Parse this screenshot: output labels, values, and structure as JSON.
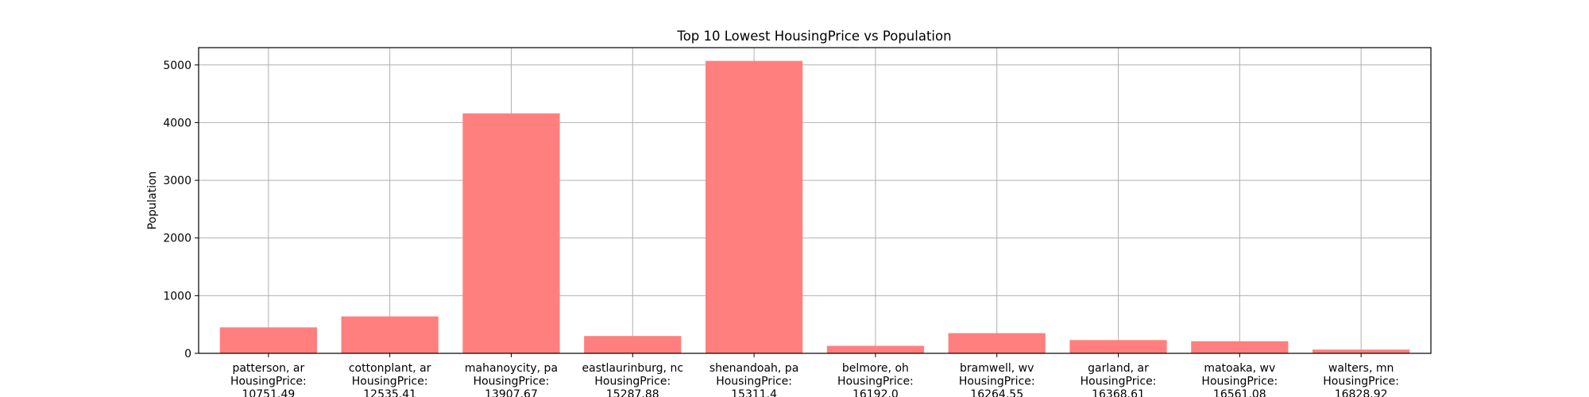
{
  "chart_data": {
    "type": "bar",
    "title": "Top 10 Lowest HousingPrice vs Population",
    "xlabel": "",
    "ylabel": "Population",
    "ylim": [
      0,
      5300
    ],
    "yticks": [
      0,
      1000,
      2000,
      3000,
      4000,
      5000
    ],
    "grid": true,
    "bar_color": "#ff7f7f",
    "categories": [
      [
        "patterson, ar",
        "HousingPrice:",
        "10751.49"
      ],
      [
        "cottonplant, ar",
        "HousingPrice:",
        "12535.41"
      ],
      [
        "mahanoycity, pa",
        "HousingPrice:",
        "13907.67"
      ],
      [
        "eastlaurinburg, nc",
        "HousingPrice:",
        "15287.88"
      ],
      [
        "shenandoah, pa",
        "HousingPrice:",
        "15311.4"
      ],
      [
        "belmore, oh",
        "HousingPrice:",
        "16192.0"
      ],
      [
        "bramwell, wv",
        "HousingPrice:",
        "16264.55"
      ],
      [
        "garland, ar",
        "HousingPrice:",
        "16368.61"
      ],
      [
        "matoaka, wv",
        "HousingPrice:",
        "16561.08"
      ],
      [
        "walters, mn",
        "HousingPrice:",
        "16828.92"
      ]
    ],
    "values": [
      450,
      640,
      4160,
      300,
      5070,
      130,
      350,
      230,
      210,
      65
    ]
  }
}
